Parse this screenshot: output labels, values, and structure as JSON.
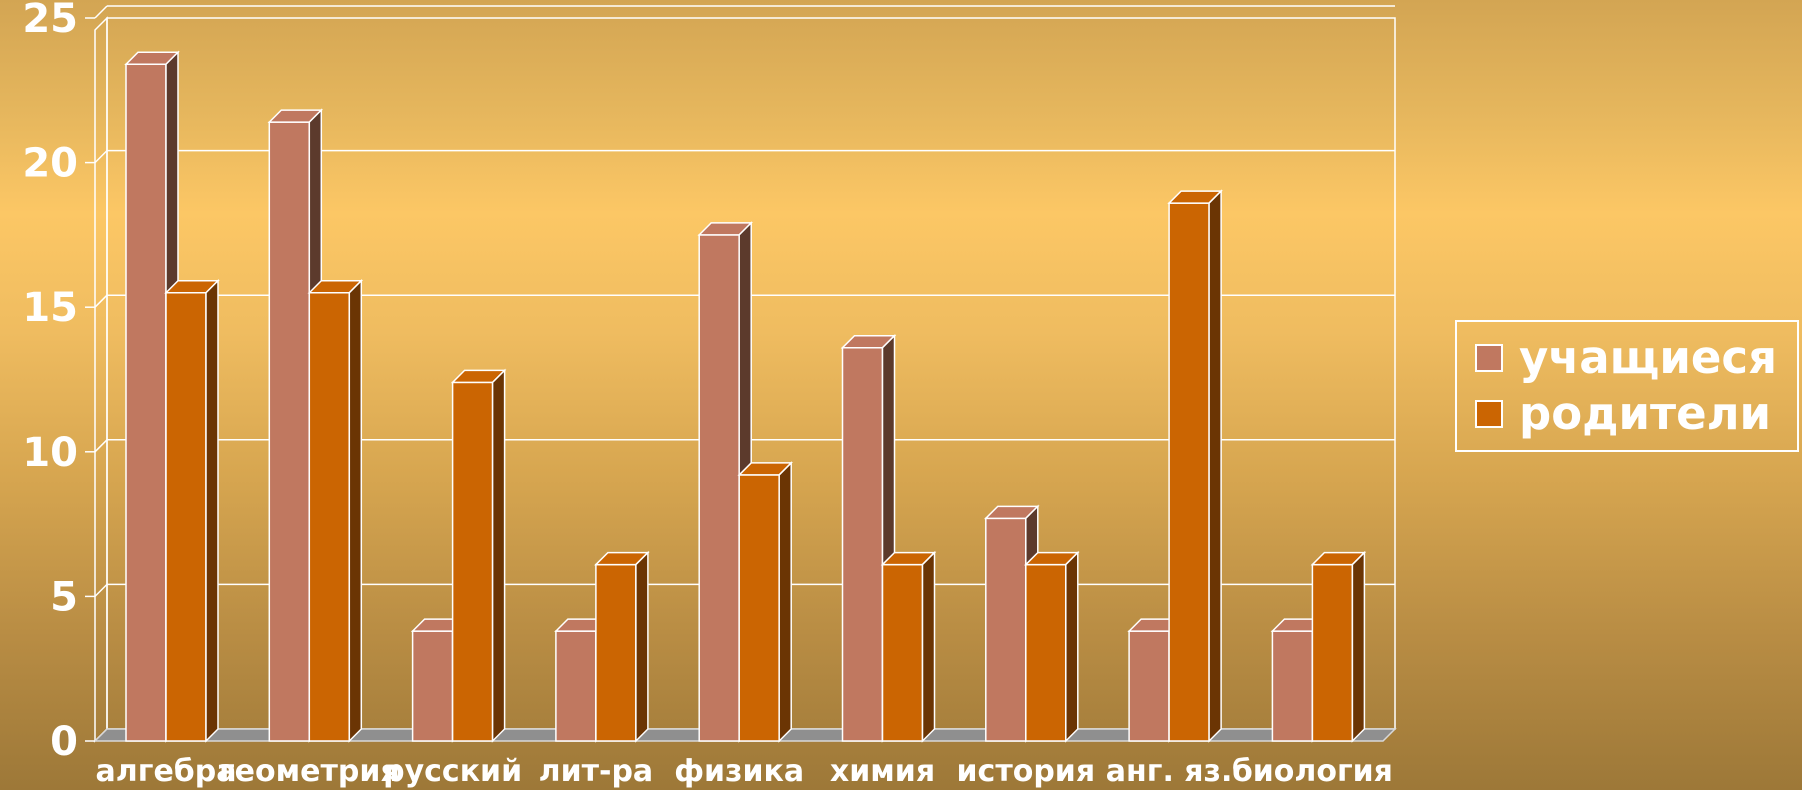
{
  "chart_data": {
    "type": "bar",
    "categories": [
      "алгебра",
      "геометрия",
      "русский",
      "лит-ра",
      "физика",
      "химия",
      "история",
      "анг. яз.",
      "биология"
    ],
    "series": [
      {
        "name": "учащиеся",
        "values": [
          23.4,
          21.4,
          3.8,
          3.8,
          17.5,
          13.6,
          7.7,
          3.8,
          3.8
        ],
        "color": "#c07860",
        "side_color": "#5c3a2c"
      },
      {
        "name": "родители",
        "values": [
          15.5,
          15.5,
          12.4,
          6.1,
          9.2,
          6.1,
          6.1,
          18.6,
          6.1
        ],
        "color": "#cb6502",
        "side_color": "#6b3504"
      }
    ],
    "yticks": [
      "0",
      "5",
      "10",
      "15",
      "20",
      "25"
    ],
    "ylim": [
      0,
      25
    ],
    "grid": true,
    "legend_position": "right",
    "style": "3d-column"
  }
}
